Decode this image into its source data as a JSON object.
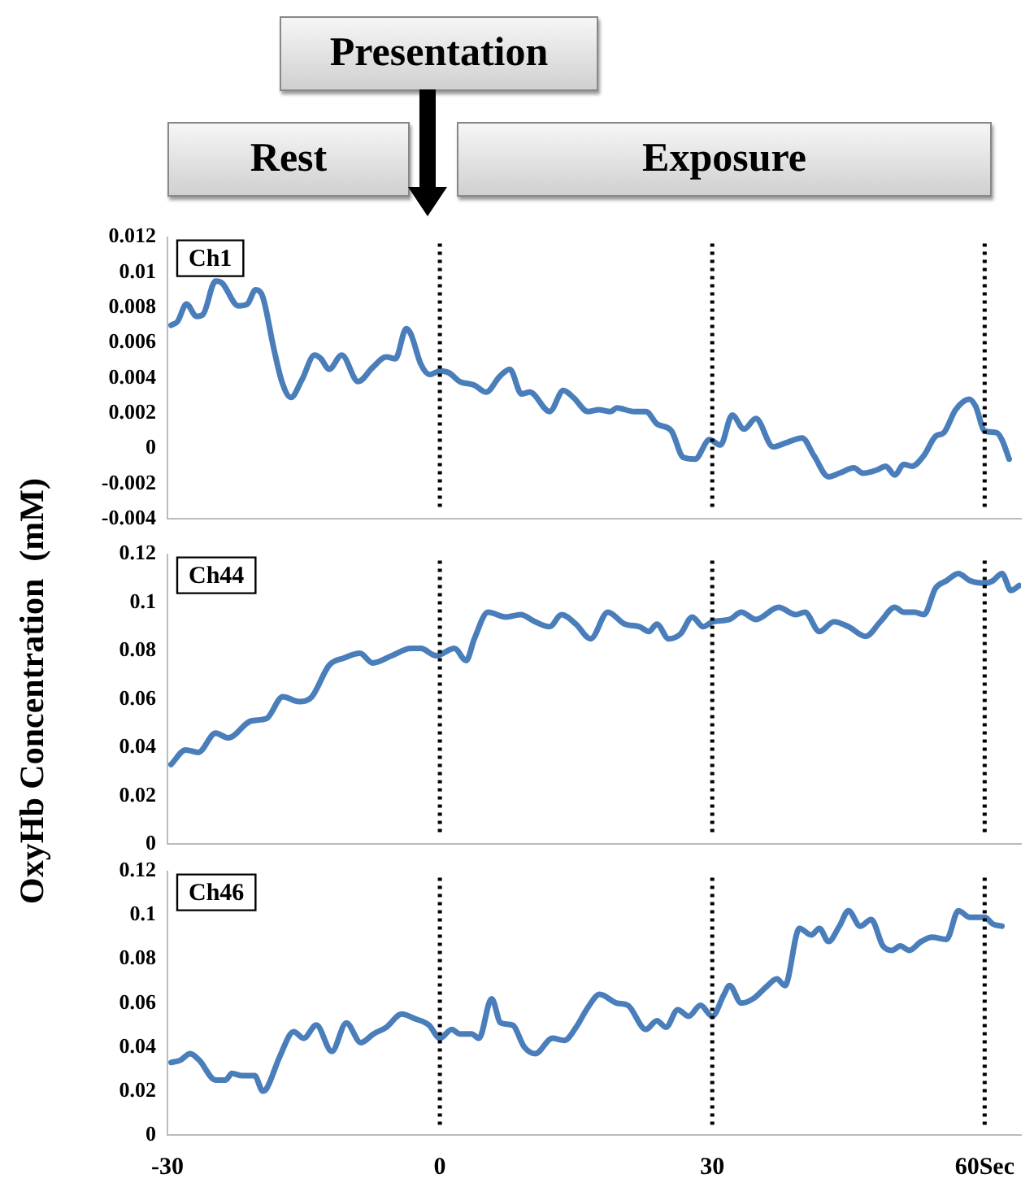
{
  "chart_data": [
    {
      "type": "line",
      "title": "Ch1",
      "annotations": [
        "Presentation",
        "Rest",
        "Exposure"
      ],
      "xlim": [
        -30,
        64
      ],
      "ylim": [
        -0.004,
        0.012
      ],
      "yticks": [
        -0.004,
        -0.002,
        0,
        0.002,
        0.004,
        0.006,
        0.008,
        0.01,
        0.012
      ],
      "tick_labels": "y",
      "grid": false,
      "marker": "none",
      "line_style": "solid",
      "ref_lines": [
        {
          "axis": "x",
          "value": 0,
          "color": "#000000",
          "line_style": "dotted"
        },
        {
          "axis": "x",
          "value": 30,
          "color": "#000000",
          "line_style": "dotted"
        },
        {
          "axis": "x",
          "value": 60,
          "color": "#000000",
          "line_style": "dotted"
        }
      ],
      "series": [
        {
          "color": "#4a7ebb",
          "x": [
            -29.6,
            -28.9,
            -27.9,
            -26.8,
            -26.1,
            -24.7,
            -24.0,
            -22.2,
            -21.2,
            -20.3,
            -19.5,
            -18.3,
            -17.4,
            -16.4,
            -15.2,
            -13.8,
            -13.1,
            -12.2,
            -10.8,
            -9.0,
            -7.4,
            -5.9,
            -4.9,
            -3.7,
            -3.2,
            -2.1,
            -1.1,
            0,
            1.0,
            2.2,
            3.8,
            5.1,
            6.6,
            7.7,
            9.0,
            9.9,
            12.1,
            13.6,
            14.7,
            16.3,
            17.5,
            18.8,
            19.5,
            21.4,
            22.7,
            23.9,
            25.5,
            26.8,
            28.1,
            29.7,
            30.9,
            32.2,
            33.5,
            34.8,
            36.7,
            38.0,
            39.9,
            41.2,
            42.8,
            44.0,
            45.6,
            46.6,
            48.2,
            49.1,
            50.1,
            51.1,
            52.0,
            53.3,
            54.6,
            55.5,
            56.8,
            58.3,
            59.0,
            60.0,
            61.3,
            61.9,
            62.7
          ],
          "values": [
            0.007,
            0.0072,
            0.0082,
            0.0075,
            0.0076,
            0.0095,
            0.0094,
            0.0081,
            0.0082,
            0.009,
            0.0086,
            0.0057,
            0.0038,
            0.0029,
            0.0039,
            0.0053,
            0.0051,
            0.0045,
            0.0053,
            0.0038,
            0.0046,
            0.0052,
            0.0051,
            0.0068,
            0.0065,
            0.0048,
            0.0042,
            0.0044,
            0.0043,
            0.0038,
            0.0036,
            0.0032,
            0.0041,
            0.0045,
            0.0031,
            0.0032,
            0.0021,
            0.0033,
            0.0029,
            0.0021,
            0.0022,
            0.0021,
            0.0023,
            0.0021,
            0.0021,
            0.0014,
            0.001,
            -0.0005,
            -0.0006,
            0.0005,
            0.0002,
            0.0019,
            0.0011,
            0.0017,
            0.0001,
            0.0003,
            0.0006,
            -0.0004,
            -0.0016,
            -0.0014,
            -0.0011,
            -0.0014,
            -0.0012,
            -0.001,
            -0.0015,
            -0.0009,
            -0.001,
            -0.0004,
            0.0007,
            0.0009,
            0.0022,
            0.0028,
            0.0024,
            0.001,
            0.0009,
            0.0005,
            -0.0006
          ]
        }
      ]
    },
    {
      "type": "line",
      "title": "Ch44",
      "ylabel": "OxyHb Concentration  (mM)",
      "xlim": [
        -30,
        64
      ],
      "ylim": [
        0,
        0.12
      ],
      "yticks": [
        0,
        0.02,
        0.04,
        0.06,
        0.08,
        0.1,
        0.12
      ],
      "tick_labels": "y",
      "grid": false,
      "marker": "none",
      "line_style": "solid",
      "ref_lines": [
        {
          "axis": "x",
          "value": 0,
          "color": "#000000",
          "line_style": "dotted"
        },
        {
          "axis": "x",
          "value": 30,
          "color": "#000000",
          "line_style": "dotted"
        },
        {
          "axis": "x",
          "value": 60,
          "color": "#000000",
          "line_style": "dotted"
        }
      ],
      "series": [
        {
          "color": "#4a7ebb",
          "x": [
            -29.6,
            -28.0,
            -26.6,
            -24.7,
            -23.3,
            -20.8,
            -19.1,
            -17.3,
            -15.5,
            -14.1,
            -12.2,
            -10.6,
            -8.8,
            -7.4,
            -5.3,
            -3.2,
            -2.1,
            -0.4,
            1.6,
            2.9,
            3.8,
            5.3,
            7.3,
            8.9,
            10.5,
            12.1,
            13.4,
            15.0,
            16.6,
            18.5,
            20.4,
            22.0,
            23.0,
            23.9,
            25.2,
            26.5,
            27.8,
            29.0,
            30.0,
            31.9,
            33.2,
            34.8,
            37.3,
            39.2,
            40.2,
            41.8,
            43.4,
            45.0,
            46.9,
            48.5,
            50.1,
            51.1,
            52.3,
            53.3,
            54.6,
            55.8,
            57.1,
            58.4,
            60.0,
            60.9,
            61.9,
            62.9,
            63.8
          ],
          "values": [
            0.033,
            0.039,
            0.038,
            0.046,
            0.044,
            0.051,
            0.052,
            0.061,
            0.059,
            0.061,
            0.074,
            0.077,
            0.079,
            0.075,
            0.078,
            0.081,
            0.081,
            0.078,
            0.081,
            0.076,
            0.085,
            0.096,
            0.094,
            0.095,
            0.092,
            0.09,
            0.095,
            0.091,
            0.085,
            0.096,
            0.091,
            0.09,
            0.088,
            0.091,
            0.085,
            0.087,
            0.094,
            0.09,
            0.092,
            0.093,
            0.096,
            0.093,
            0.098,
            0.095,
            0.096,
            0.088,
            0.092,
            0.09,
            0.086,
            0.092,
            0.098,
            0.096,
            0.096,
            0.095,
            0.106,
            0.109,
            0.112,
            0.109,
            0.108,
            0.109,
            0.112,
            0.105,
            0.107
          ]
        }
      ]
    },
    {
      "type": "line",
      "title": "Ch46",
      "xlim": [
        -30,
        64
      ],
      "xticks": [
        -30,
        0,
        30,
        {
          "value": 60,
          "label": "60Sec"
        }
      ],
      "ylim": [
        0,
        0.12
      ],
      "yticks": [
        0,
        0.02,
        0.04,
        0.06,
        0.08,
        0.1,
        0.12
      ],
      "grid": false,
      "marker": "none",
      "line_style": "solid",
      "ref_lines": [
        {
          "axis": "x",
          "value": 0,
          "color": "#000000",
          "line_style": "dotted"
        },
        {
          "axis": "x",
          "value": 30,
          "color": "#000000",
          "line_style": "dotted"
        },
        {
          "axis": "x",
          "value": 60,
          "color": "#000000",
          "line_style": "dotted"
        }
      ],
      "series": [
        {
          "color": "#4a7ebb",
          "x": [
            -29.6,
            -28.6,
            -27.5,
            -26.5,
            -24.7,
            -23.6,
            -22.9,
            -21.8,
            -20.4,
            -19.5,
            -19.1,
            -17.6,
            -16.1,
            -15.0,
            -13.6,
            -11.9,
            -10.3,
            -8.7,
            -7.3,
            -5.9,
            -4.2,
            -2.8,
            -1.2,
            0,
            1.3,
            2.2,
            3.5,
            4.3,
            5.7,
            6.7,
            8.0,
            9.3,
            10.5,
            12.4,
            13.7,
            15.0,
            16.3,
            17.6,
            19.5,
            20.7,
            22.7,
            23.9,
            24.9,
            26.2,
            27.4,
            28.7,
            30.0,
            31.3,
            31.9,
            33.2,
            34.5,
            36.1,
            37.1,
            38.0,
            39.6,
            40.9,
            41.8,
            42.8,
            44.0,
            45.0,
            46.3,
            47.5,
            48.8,
            49.8,
            50.7,
            51.7,
            53.0,
            54.2,
            55.8,
            57.1,
            58.4,
            60.0,
            60.9,
            61.9
          ],
          "values": [
            0.033,
            0.034,
            0.037,
            0.034,
            0.025,
            0.025,
            0.028,
            0.027,
            0.027,
            0.02,
            0.021,
            0.036,
            0.047,
            0.044,
            0.05,
            0.038,
            0.051,
            0.042,
            0.046,
            0.049,
            0.055,
            0.053,
            0.05,
            0.044,
            0.048,
            0.046,
            0.046,
            0.044,
            0.062,
            0.051,
            0.05,
            0.04,
            0.037,
            0.044,
            0.043,
            0.049,
            0.058,
            0.064,
            0.06,
            0.059,
            0.048,
            0.052,
            0.049,
            0.057,
            0.054,
            0.059,
            0.054,
            0.064,
            0.068,
            0.06,
            0.062,
            0.068,
            0.071,
            0.068,
            0.094,
            0.091,
            0.094,
            0.088,
            0.095,
            0.102,
            0.095,
            0.098,
            0.086,
            0.084,
            0.086,
            0.084,
            0.088,
            0.09,
            0.089,
            0.102,
            0.099,
            0.099,
            0.096,
            0.095
          ]
        }
      ]
    }
  ]
}
